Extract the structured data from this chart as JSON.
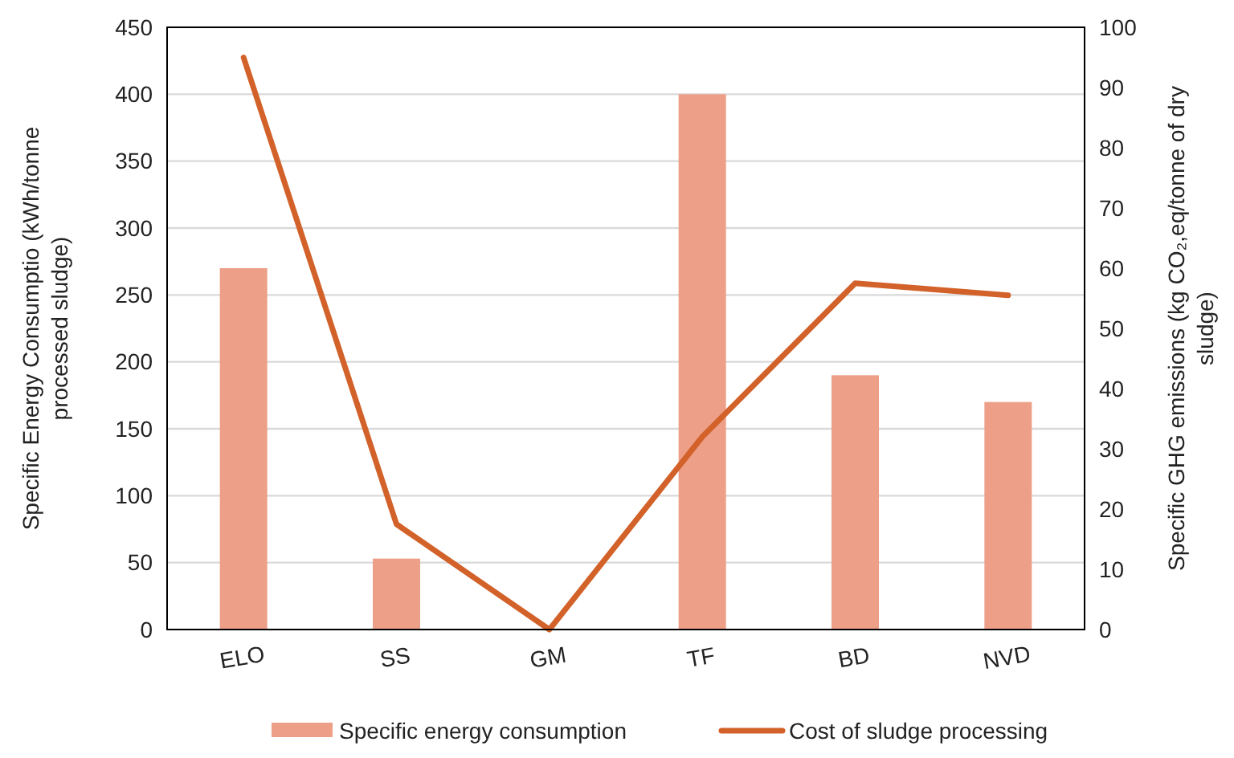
{
  "chart_data": {
    "type": "bar",
    "categories": [
      "ELO",
      "SS",
      "GM",
      "TF",
      "BD",
      "NVD"
    ],
    "series": [
      {
        "name": "Specific energy consumption",
        "color": "#ed9f88",
        "values": [
          270,
          53,
          null,
          400,
          190,
          170
        ]
      },
      {
        "name": "Cost of sludge processing",
        "type": "line",
        "axis": "y2",
        "color": "#d2622a",
        "values": [
          95,
          17.5,
          0,
          32,
          57.5,
          55.5
        ]
      }
    ],
    "ylabel": "Specific Energy Consumptio (kWh/tonne processed sludge)",
    "y2label": "Specific GHG emissions (kg CO₂,eq/tonne of dry sludge)",
    "ylim": [
      0,
      450
    ],
    "yticks": [
      0,
      50,
      100,
      150,
      200,
      250,
      300,
      350,
      400,
      450
    ],
    "y2lim": [
      0,
      100
    ],
    "y2ticks": [
      0,
      10,
      20,
      30,
      40,
      50,
      60,
      70,
      80,
      90,
      100
    ],
    "grid": "y",
    "legend": "bottom",
    "marker": "none",
    "line_style": "solid"
  }
}
